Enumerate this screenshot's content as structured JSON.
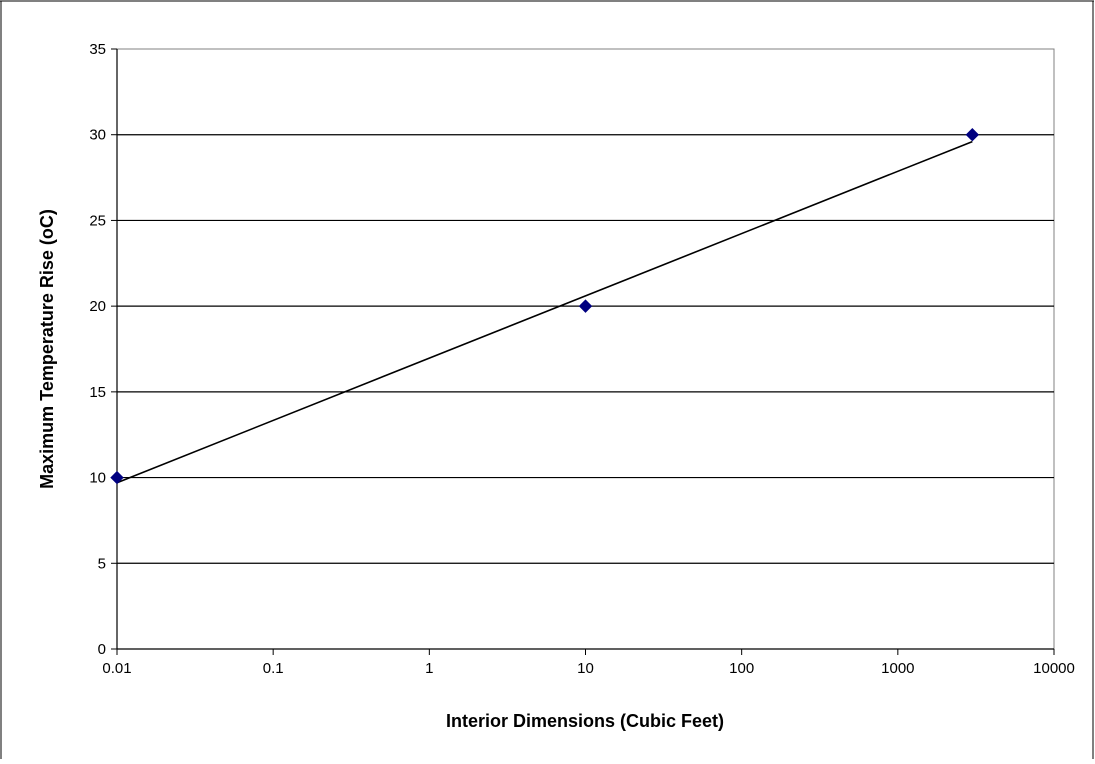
{
  "chart_data": {
    "type": "scatter",
    "xscale": "log",
    "xlabel": "Interior Dimensions (Cubic Feet)",
    "ylabel": "Maximum Temperature Rise (oC)",
    "xlim": [
      0.01,
      10000
    ],
    "ylim": [
      0,
      35
    ],
    "xticks": [
      "0.01",
      "0.1",
      "1",
      "10",
      "100",
      "1000",
      "10000"
    ],
    "xtick_values": [
      0.01,
      0.1,
      1,
      10,
      100,
      1000,
      10000
    ],
    "yticks": [
      "0",
      "5",
      "10",
      "15",
      "20",
      "25",
      "30",
      "35"
    ],
    "ytick_values": [
      0,
      5,
      10,
      15,
      20,
      25,
      30,
      35
    ],
    "grid": "horizontal",
    "legend": "none",
    "series": [
      {
        "x": [
          0.01,
          10,
          3000
        ],
        "y": [
          10,
          20,
          30
        ],
        "color": "#000080",
        "marker": "diamond"
      }
    ],
    "trendline": {
      "type": "logarithmic",
      "x": [
        0.01,
        3000
      ],
      "y": [
        9.7,
        29.6
      ],
      "color": "#000000"
    }
  }
}
